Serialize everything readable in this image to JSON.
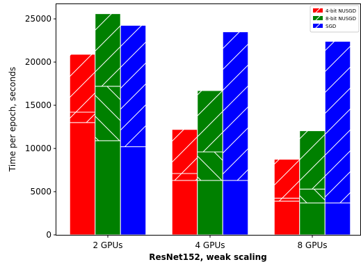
{
  "chart_data": {
    "type": "bar",
    "stacked_segments": true,
    "categories": [
      "2 GPUs",
      "4 GPUs",
      "8 GPUs"
    ],
    "series": [
      {
        "name": "4-bit NUSGD",
        "color": "#ff0000",
        "values": [
          20900,
          12200,
          8750
        ],
        "segments": [
          [
            13000,
            1200,
            6700
          ],
          [
            6300,
            800,
            5100
          ],
          [
            3900,
            350,
            4500
          ]
        ]
      },
      {
        "name": "8-bit NUSGD",
        "color": "#008000",
        "values": [
          25600,
          16700,
          12050
        ],
        "segments": [
          [
            10900,
            6300,
            8400
          ],
          [
            6300,
            3300,
            7100
          ],
          [
            3700,
            1600,
            6750
          ]
        ]
      },
      {
        "name": "SGD",
        "color": "#0000ff",
        "values": [
          24250,
          23500,
          22400
        ],
        "segments": [
          [
            10200,
            14050
          ],
          [
            6300,
            17200
          ],
          [
            3700,
            18700
          ]
        ]
      }
    ],
    "ylabel": "Time per epoch, seconds",
    "xlabel": "ResNet152, weak scaling",
    "ylim": [
      0,
      26700
    ],
    "yticks": [
      "0",
      "5000",
      "10000",
      "15000",
      "20000",
      "25000"
    ],
    "grid": false,
    "legend": "top-right"
  }
}
